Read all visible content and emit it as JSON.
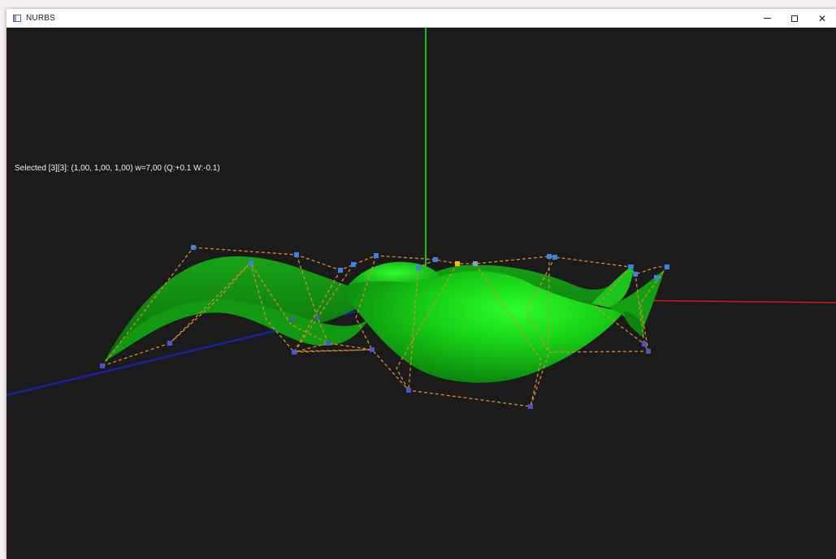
{
  "window": {
    "title": "NURBS",
    "controls": {
      "minimize_icon": "minimize-icon",
      "maximize_icon": "maximize-icon",
      "close_icon": "close-icon",
      "close_glyph": "✕"
    }
  },
  "viewport": {
    "status": "Selected [3][3]: (1,00, 1,00, 1,00) w=7,00 (Q:+0.1 W:-0.1)",
    "colors": {
      "background": "#1b1b1b",
      "surface_light": "#22ee22",
      "surface_dark": "#0c7a0c",
      "axis_x": "#d01818",
      "axis_y": "#19c019",
      "axis_z": "#1c20a8",
      "control_net": "#d98a2c",
      "control_point": "#3b82e6",
      "control_point_dim": "#5050d0",
      "selected_point": "#f2c400"
    }
  }
}
